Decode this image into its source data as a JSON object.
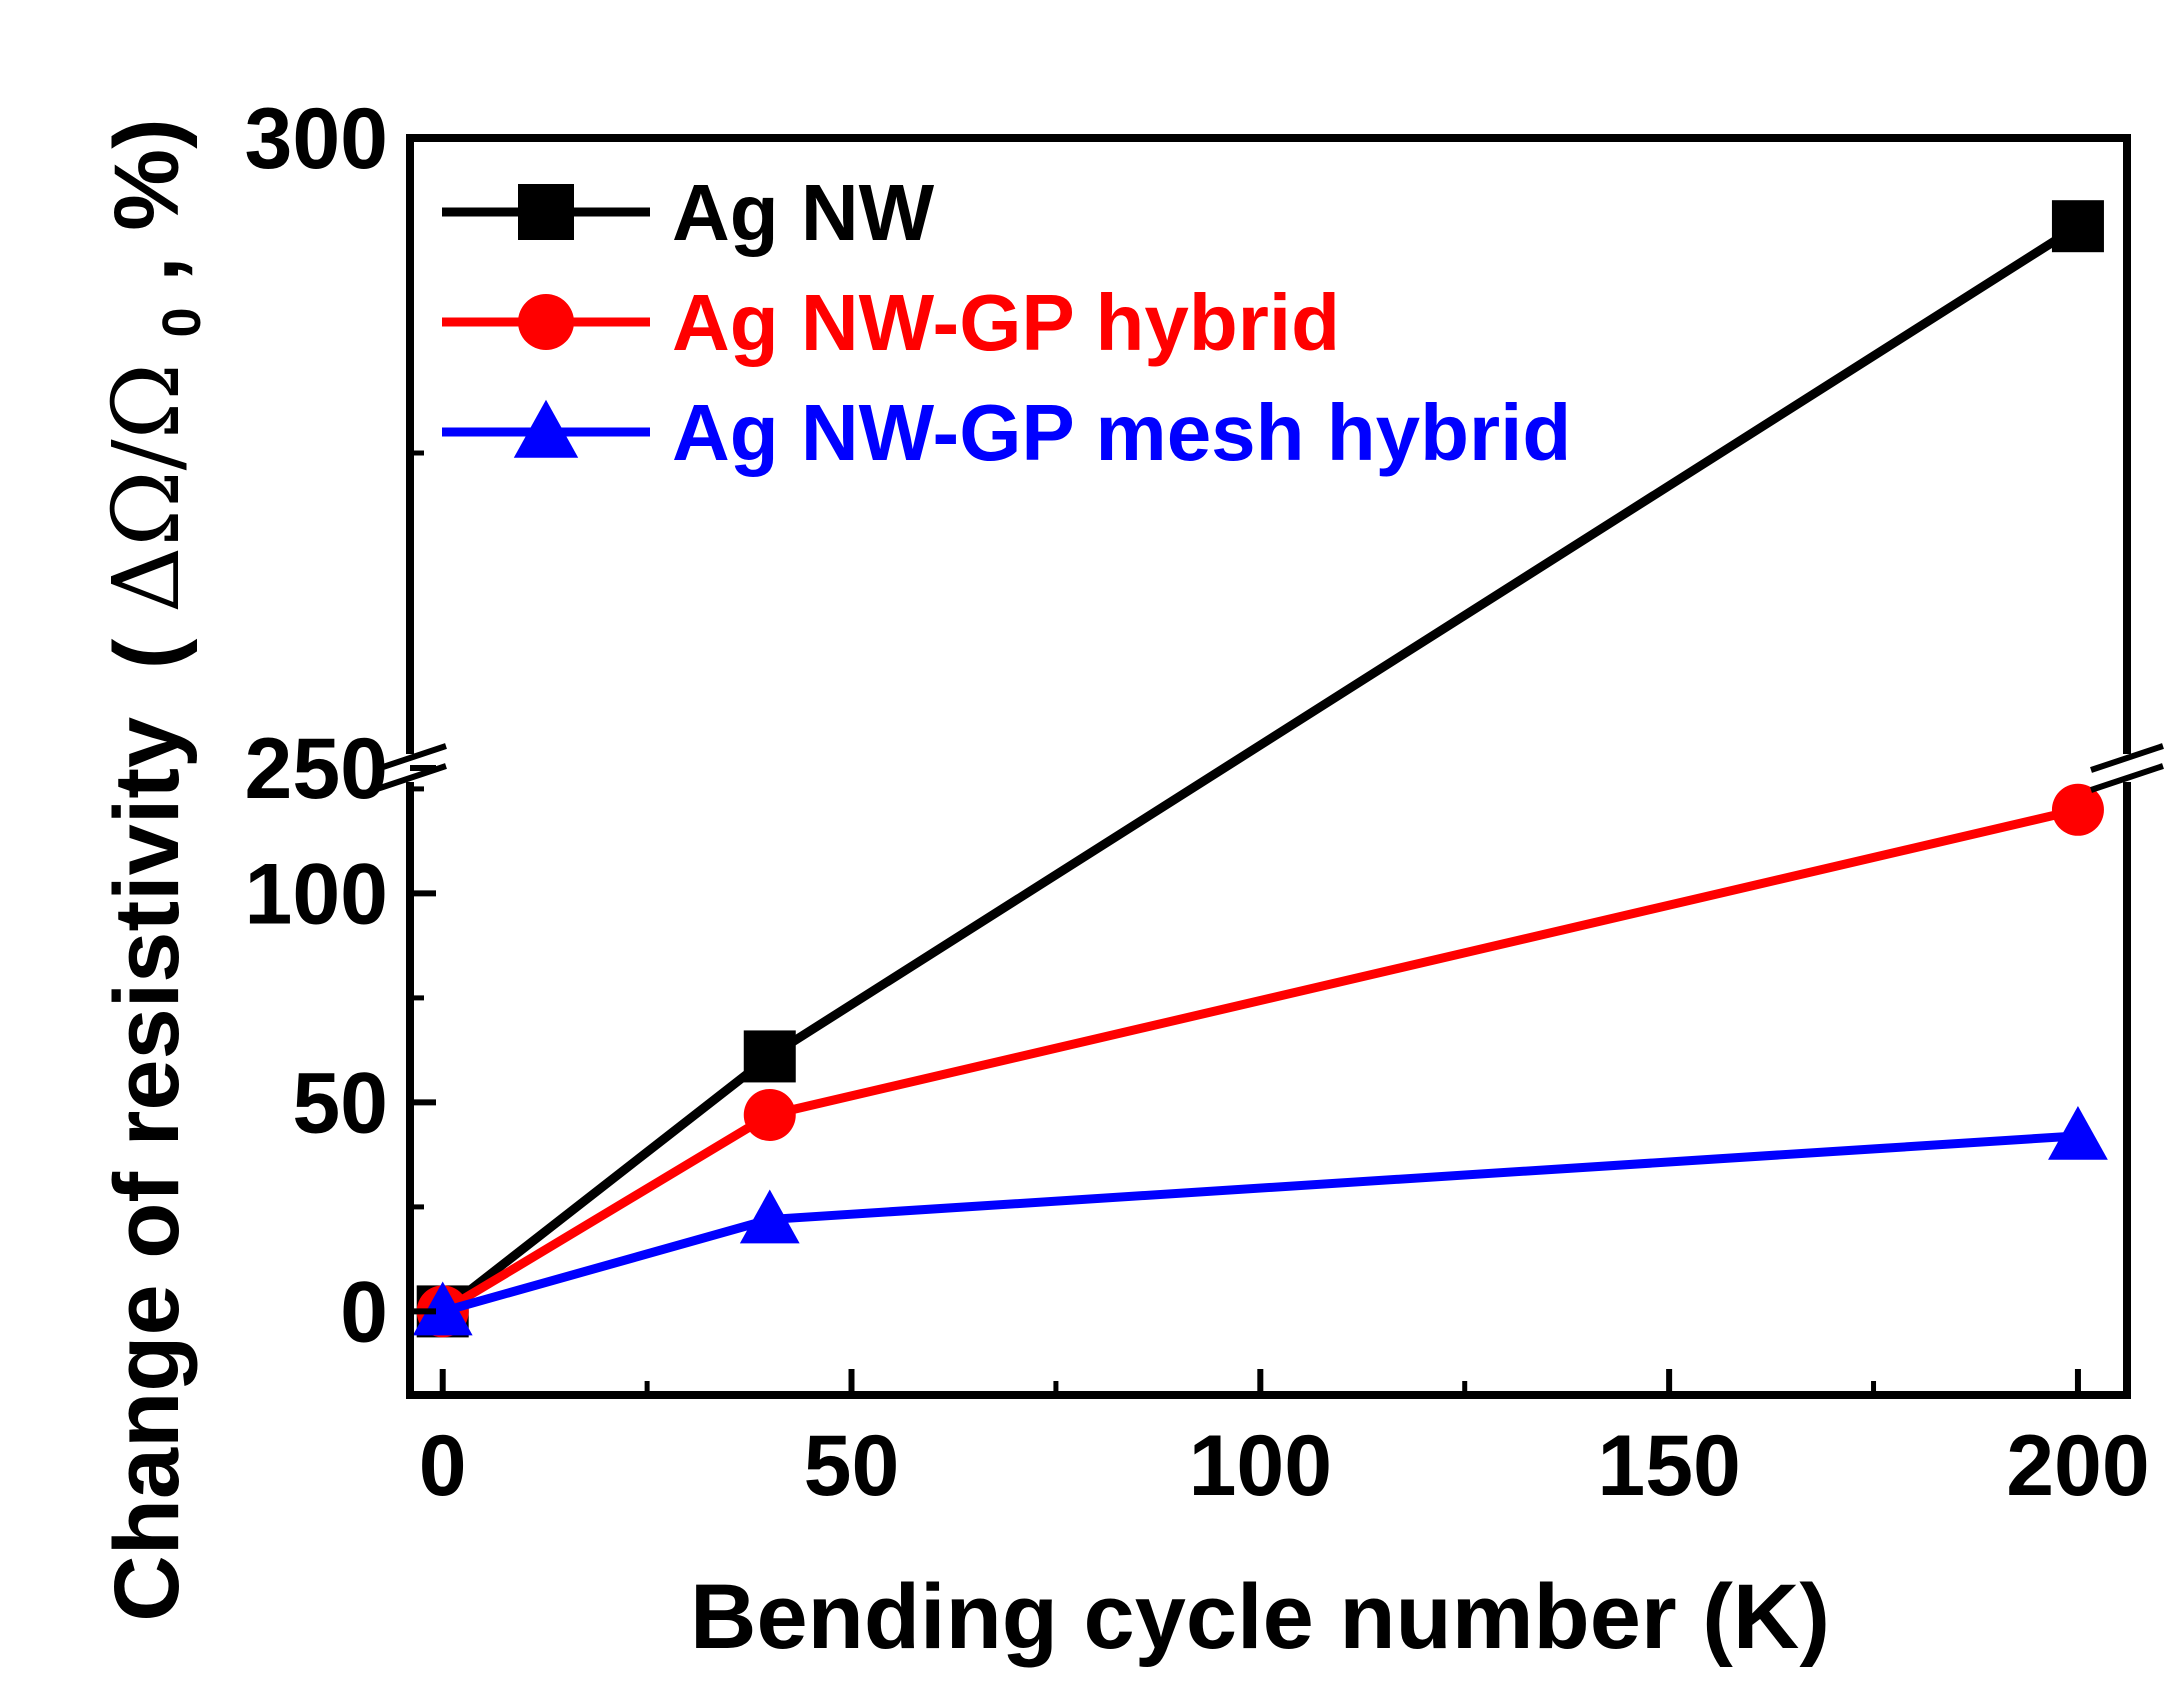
{
  "chart_data": {
    "type": "line",
    "title": "",
    "xlabel": "Bending cycle number (K)",
    "ylabel": {
      "main": "Change of resistivity",
      "units_open": "(",
      "units_symbol": "ΔΩ/Ω",
      "units_subscript": "0",
      "units_tail": ", %)"
    },
    "xlim": [
      -4,
      206
    ],
    "x_ticks": [
      0,
      50,
      100,
      150,
      200
    ],
    "x_tick_labels": [
      "0",
      "50",
      "100",
      "150",
      "200"
    ],
    "y_axis_broken": true,
    "y_lower_range": [
      -20,
      130
    ],
    "y_upper_range": [
      250,
      300
    ],
    "y_ticks": [
      0,
      50,
      100,
      250,
      300
    ],
    "y_tick_labels": [
      "0",
      "50",
      "100",
      "250",
      "300"
    ],
    "legend_position": "top-left",
    "series": [
      {
        "name": "Ag NW",
        "color": "#000000",
        "marker": "square",
        "x": [
          0,
          40,
          200
        ],
        "values": [
          0,
          61,
          293
        ]
      },
      {
        "name": "Ag NW-GP hybrid",
        "color": "#ff0000",
        "marker": "circle",
        "x": [
          0,
          40,
          200
        ],
        "values": [
          0,
          47,
          120
        ]
      },
      {
        "name": "Ag NW-GP mesh hybrid",
        "color": "#0000ff",
        "marker": "triangle",
        "x": [
          0,
          40,
          200
        ],
        "values": [
          0,
          22,
          42
        ]
      }
    ]
  }
}
